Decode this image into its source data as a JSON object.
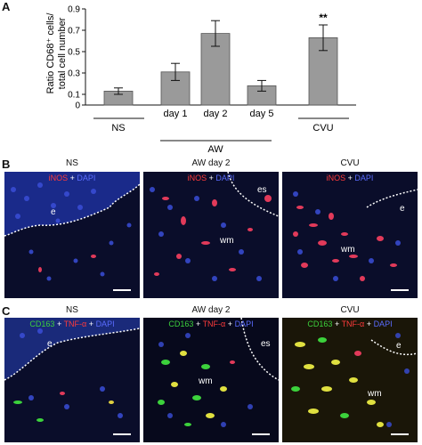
{
  "panels": {
    "a": "A",
    "b": "B",
    "c": "C"
  },
  "chart_data": {
    "type": "bar",
    "ylabel_line1": "Ratio CD68⁺ cells/",
    "ylabel_line2": "total cell number",
    "ylim": [
      0,
      0.9
    ],
    "yticks": [
      "0",
      "0.1",
      "0.3",
      "0.5",
      "0.7",
      "0.9"
    ],
    "categories": [
      "",
      "day 1",
      "day 2",
      "day 5",
      ""
    ],
    "values": [
      0.13,
      0.31,
      0.67,
      0.18,
      0.63
    ],
    "errors": [
      0.03,
      0.08,
      0.12,
      0.05,
      0.12
    ],
    "bar_color": "#9a9a9a",
    "significance": {
      "index": 4,
      "label": "**"
    },
    "group_labels": {
      "ns": "NS",
      "aw": "AW",
      "cvu": "CVU"
    }
  },
  "panel_b": {
    "columns": [
      {
        "title": "NS",
        "stain": {
          "marker": "iNOS",
          "plus": "+",
          "dapi": "DAPI"
        },
        "regions": [
          "e"
        ]
      },
      {
        "title": "AW day 2",
        "stain": {
          "marker": "iNOS",
          "plus": "+",
          "dapi": "DAPI"
        },
        "regions": [
          "es",
          "wm"
        ]
      },
      {
        "title": "CVU",
        "stain": {
          "marker": "iNOS",
          "plus": "+",
          "dapi": "DAPI"
        },
        "regions": [
          "e",
          "wm"
        ]
      }
    ]
  },
  "panel_c": {
    "columns": [
      {
        "title": "NS",
        "stain": {
          "m1": "CD163",
          "m2": "TNF-α",
          "plus": "+",
          "dapi": "DAPI"
        },
        "regions": [
          "e"
        ]
      },
      {
        "title": "AW day 2",
        "stain": {
          "m1": "CD163",
          "m2": "TNF-α",
          "plus": "+",
          "dapi": "DAPI"
        },
        "regions": [
          "es",
          "wm"
        ]
      },
      {
        "title": "CVU",
        "stain": {
          "m1": "CD163",
          "m2": "TNF-α",
          "plus": "+",
          "dapi": "DAPI"
        },
        "regions": [
          "e",
          "wm"
        ]
      }
    ]
  }
}
